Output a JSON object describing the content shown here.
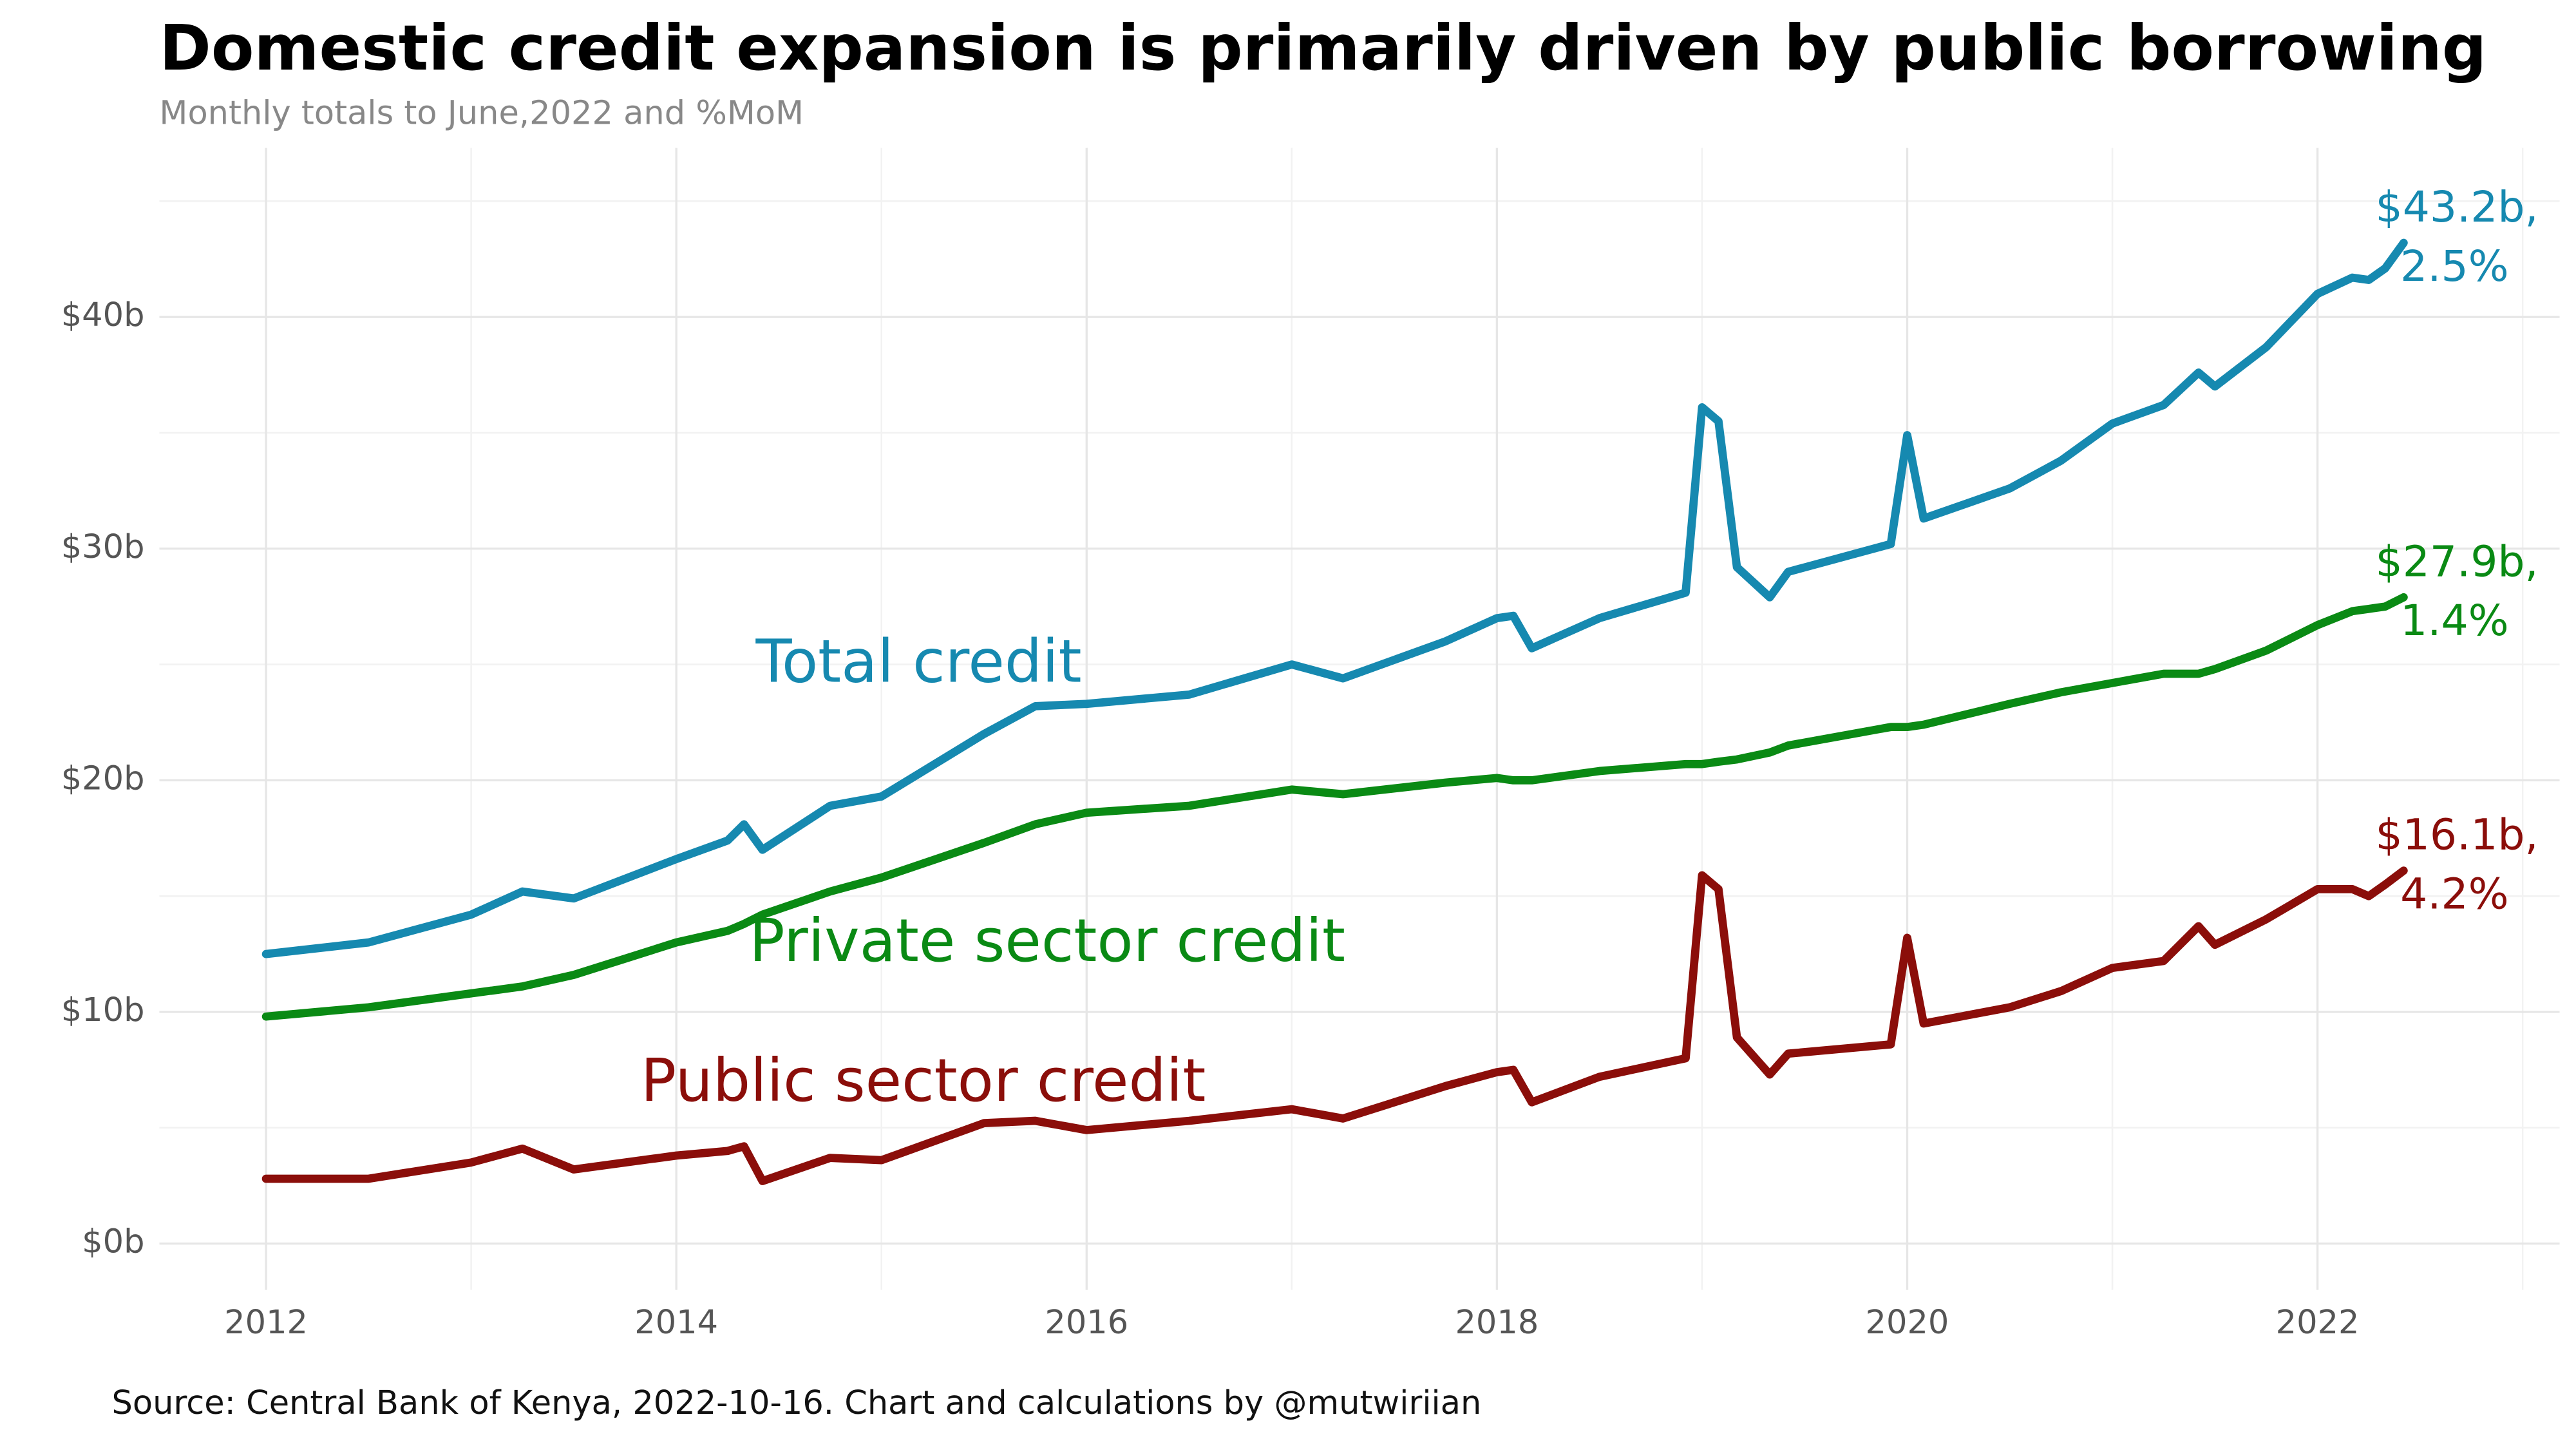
{
  "chart_data": {
    "type": "line",
    "title": "Domestic credit expansion is primarily driven by public borrowing",
    "subtitle": "Monthly totals to June,2022 and %MoM",
    "source": "Source: Central Bank of Kenya, 2022-10-16. Chart and calculations by @mutwiriian",
    "x": [
      2012.0,
      2012.5,
      2013.0,
      2013.25,
      2013.5,
      2014.0,
      2014.25,
      2014.33,
      2014.42,
      2014.75,
      2015.0,
      2015.5,
      2015.75,
      2016.0,
      2016.5,
      2017.0,
      2017.25,
      2017.75,
      2018.0,
      2018.08,
      2018.17,
      2018.5,
      2018.92,
      2019.0,
      2019.08,
      2019.17,
      2019.33,
      2019.42,
      2019.92,
      2020.0,
      2020.08,
      2020.5,
      2020.75,
      2021.0,
      2021.25,
      2021.42,
      2021.5,
      2021.75,
      2022.0,
      2022.17,
      2022.25,
      2022.33,
      2022.42
    ],
    "series": [
      {
        "name": "Total credit",
        "color": "#1689b0",
        "end_label": [
          "$43.2b,",
          "2.5%"
        ],
        "values": [
          12.5,
          13.0,
          14.2,
          15.2,
          14.9,
          16.6,
          17.4,
          18.1,
          17.0,
          18.9,
          19.3,
          22.0,
          23.2,
          23.3,
          23.7,
          25.0,
          24.4,
          26.0,
          27.0,
          27.1,
          25.7,
          27.0,
          28.1,
          36.1,
          35.5,
          29.2,
          27.9,
          29.0,
          30.2,
          34.9,
          31.3,
          32.6,
          33.8,
          35.4,
          36.2,
          37.6,
          37.0,
          38.7,
          41.0,
          41.7,
          41.6,
          42.1,
          43.2
        ]
      },
      {
        "name": "Private sector credit",
        "color": "#0a8a14",
        "end_label": [
          "$27.9b,",
          "1.4%"
        ],
        "values": [
          9.8,
          10.2,
          10.8,
          11.1,
          11.6,
          13.0,
          13.5,
          13.8,
          14.2,
          15.2,
          15.8,
          17.3,
          18.1,
          18.6,
          18.9,
          19.6,
          19.4,
          19.9,
          20.1,
          20.0,
          20.0,
          20.4,
          20.7,
          20.7,
          20.8,
          20.9,
          21.2,
          21.5,
          22.3,
          22.3,
          22.4,
          23.3,
          23.8,
          24.2,
          24.6,
          24.6,
          24.8,
          25.6,
          26.7,
          27.3,
          27.4,
          27.5,
          27.9
        ]
      },
      {
        "name": "Public sector credit",
        "color": "#8b0e0a",
        "end_label": [
          "$16.1b,",
          "4.2%"
        ],
        "values": [
          2.8,
          2.8,
          3.5,
          4.1,
          3.2,
          3.8,
          4.0,
          4.2,
          2.7,
          3.7,
          3.6,
          5.2,
          5.3,
          4.9,
          5.3,
          5.8,
          5.4,
          6.8,
          7.4,
          7.5,
          6.1,
          7.2,
          8.0,
          15.9,
          15.3,
          8.9,
          7.3,
          8.2,
          8.6,
          13.2,
          9.5,
          10.2,
          10.9,
          11.9,
          12.2,
          13.7,
          12.9,
          14.0,
          15.3,
          15.3,
          15.0,
          15.5,
          16.1
        ]
      }
    ],
    "xlim": [
      2011.48,
      2023.18
    ],
    "xticks": [
      2012,
      2014,
      2016,
      2018,
      2020,
      2022
    ],
    "ylim": [
      -2,
      47.3
    ],
    "yticks": [
      {
        "value": 0,
        "label": "$0b"
      },
      {
        "value": 10,
        "label": "$10b"
      },
      {
        "value": 20,
        "label": "$20b"
      },
      {
        "value": 30,
        "label": "$30b"
      },
      {
        "value": 40,
        "label": "$40b"
      }
    ],
    "grid": true
  }
}
